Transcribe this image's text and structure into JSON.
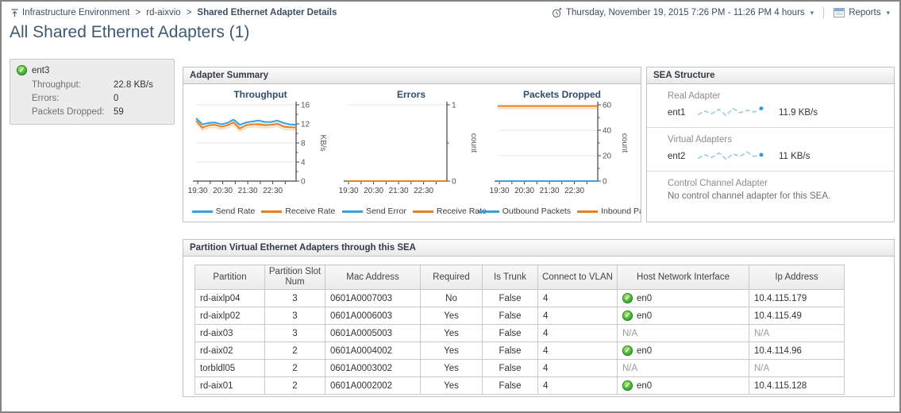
{
  "icons": {
    "check": "✓",
    "caret": "▾"
  },
  "colors": {
    "series_blue": "#38A0DC",
    "series_orange": "#E8821E",
    "ok_green": "#2EA12B"
  },
  "header": {
    "breadcrumb": {
      "items": [
        "Infrastructure Environment",
        "rd-aixvio"
      ],
      "separator": ">",
      "current": "Shared Ethernet Adapter Details"
    },
    "time_range": "Thursday, November 19, 2015 7:26 PM - 11:26 PM 4 hours",
    "reports": "Reports",
    "title": "All Shared Ethernet Adapters (1)"
  },
  "adapter_card": {
    "name": "ent3",
    "metrics": [
      {
        "label": "Throughput:",
        "value": "22.8 KB/s"
      },
      {
        "label": "Errors:",
        "value": "0"
      },
      {
        "label": "Packets Dropped:",
        "value": "59"
      }
    ]
  },
  "adapter_summary": {
    "title": "Adapter Summary"
  },
  "chart_data": [
    {
      "type": "line",
      "title": "Throughput",
      "ylabel": "KB/s",
      "ylim": [
        0,
        16
      ],
      "yticks": [
        0,
        4,
        8,
        12,
        16
      ],
      "yminor": [
        2,
        6,
        10,
        14
      ],
      "x": {
        "start": 0,
        "end": 240,
        "ticks": [
          4,
          34,
          64,
          94,
          124,
          154,
          184,
          214
        ],
        "labels": [
          {
            "t": 4,
            "text": "19:30"
          },
          {
            "t": 64,
            "text": "20:30"
          },
          {
            "t": 124,
            "text": "21:30"
          },
          {
            "t": 184,
            "text": "22:30"
          }
        ]
      },
      "series": [
        {
          "name": "Send Rate",
          "color": "#38A0DC",
          "values": [
            13.2,
            11.9,
            12.2,
            12.3,
            11.9,
            12.2,
            12.9,
            11.8,
            12.3,
            12.5,
            12.7,
            12.4,
            12.4,
            12.7,
            12.2,
            11.9,
            11.8
          ]
        },
        {
          "name": "Receive Rate",
          "color": "#E8821E",
          "values": [
            12.7,
            11.2,
            11.7,
            11.8,
            11.4,
            11.7,
            12.3,
            11.0,
            11.7,
            11.9,
            11.9,
            11.7,
            11.8,
            12.0,
            11.4,
            11.3,
            11.2
          ]
        }
      ]
    },
    {
      "type": "line",
      "title": "Errors",
      "ylabel": "count",
      "ylim": [
        0,
        1
      ],
      "yticks": [
        0,
        1
      ],
      "yminor": [
        0.5
      ],
      "x": {
        "start": 0,
        "end": 240,
        "ticks": [
          4,
          34,
          64,
          94,
          124,
          154,
          184,
          214
        ],
        "labels": [
          {
            "t": 4,
            "text": "19:30"
          },
          {
            "t": 64,
            "text": "20:30"
          },
          {
            "t": 124,
            "text": "21:30"
          },
          {
            "t": 184,
            "text": "22:30"
          }
        ]
      },
      "series": [
        {
          "name": "Send Error",
          "color": "#38A0DC",
          "values": [
            0,
            0,
            0,
            0,
            0,
            0,
            0,
            0,
            0,
            0,
            0,
            0,
            0,
            0,
            0,
            0,
            0
          ]
        },
        {
          "name": "Receive Rate",
          "color": "#E8821E",
          "values": [
            0,
            0,
            0,
            0,
            0,
            0,
            0,
            0,
            0,
            0,
            0,
            0,
            0,
            0,
            0,
            0,
            0
          ]
        }
      ]
    },
    {
      "type": "line",
      "title": "Packets Dropped",
      "ylabel": "count",
      "ylim": [
        0,
        60
      ],
      "yticks": [
        0,
        20,
        40,
        60
      ],
      "yminor": [
        10,
        30,
        50
      ],
      "x": {
        "start": 0,
        "end": 240,
        "ticks": [
          4,
          34,
          64,
          94,
          124,
          154,
          184,
          214
        ],
        "labels": [
          {
            "t": 4,
            "text": "19:30"
          },
          {
            "t": 64,
            "text": "20:30"
          },
          {
            "t": 124,
            "text": "21:30"
          },
          {
            "t": 184,
            "text": "22:30"
          }
        ]
      },
      "series": [
        {
          "name": "Outbound Packets",
          "color": "#38A0DC",
          "values": [
            0,
            0,
            0,
            0,
            0,
            0,
            0,
            0,
            0,
            0,
            0,
            0,
            0,
            0,
            0,
            0,
            0
          ]
        },
        {
          "name": "Inbound Pack",
          "color": "#E8821E",
          "values": [
            59,
            59,
            59,
            59,
            59,
            59,
            59,
            59,
            59,
            59,
            59,
            59,
            59,
            59,
            59,
            59,
            59
          ]
        }
      ]
    }
  ],
  "sea_structure": {
    "title": "SEA Structure",
    "sections": [
      {
        "label": "Real Adapter",
        "adapter": "ent1",
        "value": "11.9 KB/s",
        "sparkline": [
          11.2,
          11.6,
          11.3,
          11.8,
          11.1,
          11.9,
          11.4,
          11.7,
          11.5,
          11.9
        ]
      },
      {
        "label": "Virtual Adapters",
        "adapter": "ent2",
        "value": "11 KB/s",
        "sparkline": [
          10.8,
          11.2,
          10.9,
          11.4,
          10.7,
          11.3,
          11.0,
          11.5,
          11.0,
          11.2
        ]
      },
      {
        "label": "Control Channel Adapter",
        "message": "No control channel adapter for this SEA."
      }
    ]
  },
  "partition_panel": {
    "title": "Partition Virtual Ethernet Adapters through this SEA",
    "columns": [
      "Partition",
      "Partition Slot Num",
      "Mac Address",
      "Required",
      "Is Trunk",
      "Connect to VLAN",
      "Host Network Interface",
      "Ip Address"
    ],
    "rows": [
      {
        "partition": "rd-aixlp04",
        "slot": "3",
        "mac": "0601A0007003",
        "required": "No",
        "is_trunk": "False",
        "vlan": "4",
        "host": {
          "ok": true,
          "label": "en0"
        },
        "ip": "10.4.115.179"
      },
      {
        "partition": "rd-aixlp02",
        "slot": "3",
        "mac": "0601A0006003",
        "required": "Yes",
        "is_trunk": "False",
        "vlan": "4",
        "host": {
          "ok": true,
          "label": "en0"
        },
        "ip": "10.4.115.49"
      },
      {
        "partition": "rd-aix03",
        "slot": "3",
        "mac": "0601A0005003",
        "required": "Yes",
        "is_trunk": "False",
        "vlan": "4",
        "host": {
          "ok": false,
          "label": "N/A"
        },
        "ip": "N/A"
      },
      {
        "partition": "rd-aix02",
        "slot": "2",
        "mac": "0601A0004002",
        "required": "Yes",
        "is_trunk": "False",
        "vlan": "4",
        "host": {
          "ok": true,
          "label": "en0"
        },
        "ip": "10.4.114.96"
      },
      {
        "partition": "torbldl05",
        "slot": "2",
        "mac": "0601A0003002",
        "required": "Yes",
        "is_trunk": "False",
        "vlan": "4",
        "host": {
          "ok": false,
          "label": "N/A"
        },
        "ip": "N/A"
      },
      {
        "partition": "rd-aix01",
        "slot": "2",
        "mac": "0601A0002002",
        "required": "Yes",
        "is_trunk": "False",
        "vlan": "4",
        "host": {
          "ok": true,
          "label": "en0"
        },
        "ip": "10.4.115.128"
      }
    ]
  }
}
